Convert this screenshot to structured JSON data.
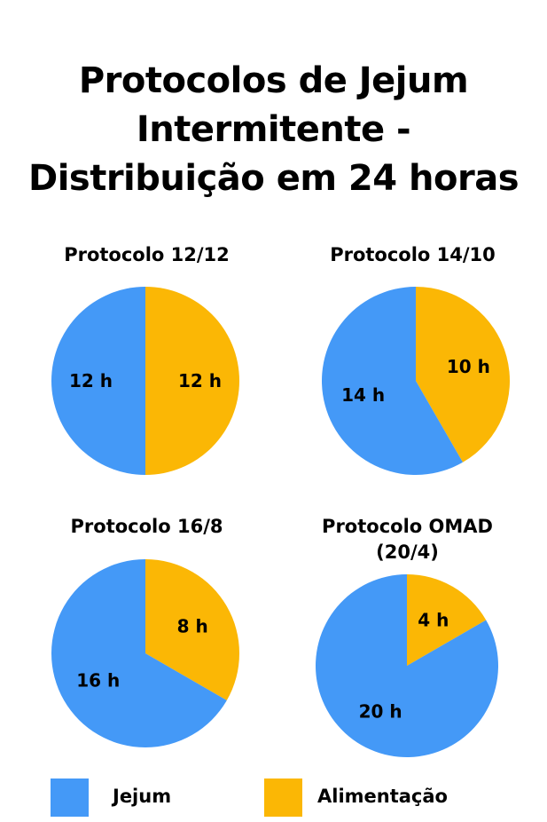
{
  "title_lines": [
    "Protocolos de Jejum",
    "Intermitente -",
    "Distribuição em 24 horas"
  ],
  "colors": {
    "jejum": "#4499f7",
    "alimentacao": "#fbb705"
  },
  "legend": [
    {
      "label": "Jejum",
      "color": "#4499f7"
    },
    {
      "label": "Alimentação",
      "color": "#fbb705"
    }
  ],
  "chart_data": [
    {
      "type": "pie",
      "title": "Protocolo 12/12",
      "unit": "h",
      "slices": [
        {
          "name": "Alimentação",
          "value": 12,
          "label": "12 h",
          "color": "#fbb705"
        },
        {
          "name": "Jejum",
          "value": 12,
          "label": "12 h",
          "color": "#4499f7"
        }
      ]
    },
    {
      "type": "pie",
      "title": "Protocolo 14/10",
      "unit": "h",
      "slices": [
        {
          "name": "Alimentação",
          "value": 10,
          "label": "10 h",
          "color": "#fbb705"
        },
        {
          "name": "Jejum",
          "value": 14,
          "label": "14 h",
          "color": "#4499f7"
        }
      ]
    },
    {
      "type": "pie",
      "title": "Protocolo 16/8",
      "unit": "h",
      "slices": [
        {
          "name": "Alimentação",
          "value": 8,
          "label": "8 h",
          "color": "#fbb705"
        },
        {
          "name": "Jejum",
          "value": 16,
          "label": "16 h",
          "color": "#4499f7"
        }
      ]
    },
    {
      "type": "pie",
      "title": "Protocolo OMAD (20/4)",
      "title_lines": [
        "Protocolo OMAD",
        "(20/4)"
      ],
      "unit": "h",
      "slices": [
        {
          "name": "Alimentação",
          "value": 4,
          "label": "4 h",
          "color": "#fbb705"
        },
        {
          "name": "Jejum",
          "value": 20,
          "label": "20 h",
          "color": "#4499f7"
        }
      ]
    }
  ]
}
